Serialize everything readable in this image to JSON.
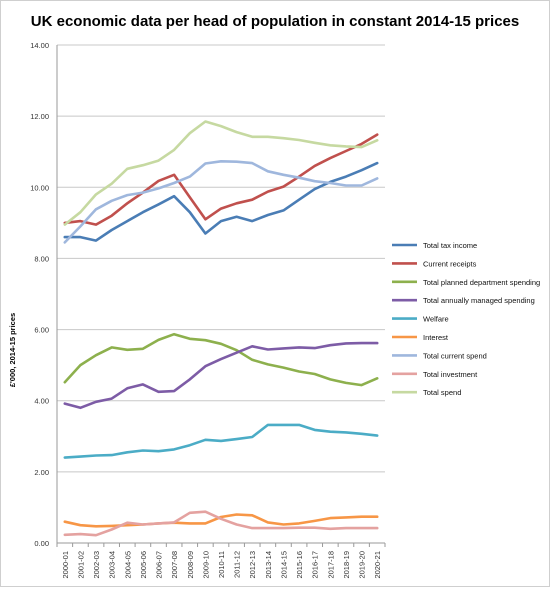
{
  "chart_data": {
    "type": "line",
    "title": "UK economic data per head of population in constant 2014-15 prices",
    "ylabel": "£'000, 2014-15 prices",
    "xlabel": "",
    "ylim": [
      0,
      14
    ],
    "yticks": [
      "0.00",
      "2.00",
      "4.00",
      "6.00",
      "8.00",
      "10.00",
      "12.00",
      "14.00"
    ],
    "x": [
      "2000-01",
      "2001-02",
      "2002-03",
      "2003-04",
      "2004-05",
      "2005-06",
      "2006-07",
      "2007-08",
      "2008-09",
      "2009-10",
      "2010-11",
      "2011-12",
      "2012-13",
      "2013-14",
      "2014-15",
      "2015-16",
      "2016-17",
      "2017-18",
      "2018-19",
      "2019-20",
      "2020-21"
    ],
    "grid": "horizontal",
    "legend_position": "right",
    "series": [
      {
        "name": "Total tax income",
        "color": "#4a7db5",
        "values": [
          8.6,
          8.6,
          8.5,
          8.8,
          9.05,
          9.3,
          9.52,
          9.75,
          9.3,
          8.7,
          9.05,
          9.17,
          9.05,
          9.22,
          9.35,
          9.65,
          9.95,
          10.15,
          10.3,
          10.48,
          10.68
        ]
      },
      {
        "name": "Current receipts",
        "color": "#c0504d",
        "values": [
          9.0,
          9.05,
          8.95,
          9.2,
          9.55,
          9.85,
          10.18,
          10.35,
          9.72,
          9.1,
          9.4,
          9.55,
          9.65,
          9.88,
          10.02,
          10.3,
          10.6,
          10.82,
          11.02,
          11.22,
          11.48
        ]
      },
      {
        "name": "Total planned department spending",
        "color": "#8db04d",
        "values": [
          4.52,
          5.0,
          5.28,
          5.5,
          5.43,
          5.46,
          5.71,
          5.87,
          5.74,
          5.7,
          5.6,
          5.42,
          5.15,
          5.02,
          4.93,
          4.82,
          4.75,
          4.6,
          4.5,
          4.44,
          4.63
        ]
      },
      {
        "name": "Total annually managed spending",
        "color": "#7d5ca6",
        "values": [
          3.92,
          3.8,
          3.97,
          4.06,
          4.35,
          4.46,
          4.25,
          4.27,
          4.6,
          4.97,
          5.17,
          5.35,
          5.53,
          5.44,
          5.47,
          5.5,
          5.48,
          5.56,
          5.61,
          5.62,
          5.62
        ]
      },
      {
        "name": "Welfare",
        "color": "#4bacc6",
        "values": [
          2.4,
          2.43,
          2.46,
          2.47,
          2.55,
          2.6,
          2.58,
          2.63,
          2.75,
          2.9,
          2.87,
          2.92,
          2.98,
          3.32,
          3.32,
          3.32,
          3.18,
          3.13,
          3.11,
          3.07,
          3.02
        ]
      },
      {
        "name": "Interest",
        "color": "#f79646",
        "values": [
          0.6,
          0.5,
          0.47,
          0.48,
          0.5,
          0.52,
          0.55,
          0.57,
          0.55,
          0.55,
          0.73,
          0.8,
          0.78,
          0.58,
          0.52,
          0.55,
          0.62,
          0.7,
          0.72,
          0.74,
          0.74
        ]
      },
      {
        "name": "Total current spend",
        "color": "#9fb7dd",
        "values": [
          8.45,
          8.9,
          9.38,
          9.62,
          9.78,
          9.85,
          9.97,
          10.12,
          10.3,
          10.67,
          10.73,
          10.72,
          10.68,
          10.45,
          10.35,
          10.27,
          10.17,
          10.12,
          10.05,
          10.05,
          10.25
        ]
      },
      {
        "name": "Total investment",
        "color": "#e4a2a0",
        "values": [
          0.23,
          0.25,
          0.22,
          0.38,
          0.57,
          0.52,
          0.55,
          0.58,
          0.85,
          0.88,
          0.68,
          0.52,
          0.42,
          0.42,
          0.42,
          0.43,
          0.43,
          0.4,
          0.42,
          0.42,
          0.42
        ]
      },
      {
        "name": "Total spend",
        "color": "#c6d9a1",
        "values": [
          8.95,
          9.3,
          9.8,
          10.1,
          10.52,
          10.62,
          10.75,
          11.05,
          11.52,
          11.85,
          11.72,
          11.55,
          11.42,
          11.42,
          11.38,
          11.33,
          11.25,
          11.18,
          11.15,
          11.13,
          11.32
        ]
      }
    ]
  }
}
